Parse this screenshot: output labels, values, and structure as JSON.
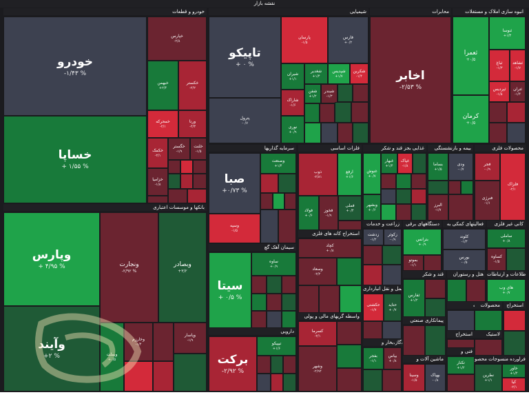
{
  "title": "نقشه بازار",
  "watermark_icon": "site-logo-watermark",
  "colors": {
    "strong_up": "#1fa34a",
    "up": "#187a3a",
    "light_up": "#1f5a36",
    "strong_down": "#d32a3a",
    "down": "#a82535",
    "light_down": "#6b2430",
    "neutral": "#3d4150"
  },
  "sectors": [
    {
      "label": "خودرو و قطعات"
    },
    {
      "label": "شیمیایی"
    },
    {
      "label": "محابرات"
    },
    {
      "label": "انبوه سازی املاک و مستغلات"
    },
    {
      "label": "بانکها و موسسات اعتباری"
    },
    {
      "label": "سرمایه گذاریها"
    },
    {
      "label": "فلزات اساسی"
    },
    {
      "label": "غذایی بجز قند و شکر"
    },
    {
      "label": "بیمه و بازنشستگی"
    },
    {
      "label": "محصولات فلزی"
    },
    {
      "label": "سیمان آهک گچ"
    },
    {
      "label": "استخراج کانه های فلزی"
    },
    {
      "label": "زراعت و خدمات"
    },
    {
      "label": "دستگاههای برقی"
    },
    {
      "label": "فعالیتهای کمکی به"
    },
    {
      "label": "کانی غیر فلزی"
    },
    {
      "label": "قند و شکر"
    },
    {
      "label": "اطلاعات و ارتباطات"
    },
    {
      "label": "حمل و نقل انبارداری"
    },
    {
      "label": "هتل و رستوران"
    },
    {
      "label": "واسطه گریهای مالی و پولی"
    },
    {
      "label": "پیمانکاری صنعتی"
    },
    {
      "label": "رایانه"
    },
    {
      "label": "محصولات"
    },
    {
      "label": "استخراج"
    },
    {
      "label": "دارویی"
    },
    {
      "label": "عرضه برق،گاز،بخار و"
    },
    {
      "label": "لاستیک"
    },
    {
      "label": "استخراج"
    },
    {
      "label": "ماشین آلات و"
    },
    {
      "label": "فنی و"
    },
    {
      "label": "سایر فراورده منسوجات محصو"
    }
  ],
  "tiles": [
    {
      "name": "خودرو",
      "pct": "-۱/۴۳ %"
    },
    {
      "name": "خساپا",
      "pct": "+ ۱/۵۵ %"
    },
    {
      "name": "خپارس",
      "pct": "-۲/۸"
    },
    {
      "name": "خبهمن",
      "pct": "+۲/۴"
    },
    {
      "name": "خکستر",
      "pct": "-۲/۲"
    },
    {
      "name": "خمحرکه",
      "pct": "-۲/۱"
    },
    {
      "name": "ورنا",
      "pct": "-۲/۳"
    },
    {
      "name": "خکمک",
      "pct": "-۲/۱"
    },
    {
      "name": "خگستر",
      "pct": "-۱/۹"
    },
    {
      "name": "خزامیا",
      "pct": "-۱/۸"
    },
    {
      "name": "خلنت",
      "pct": "-۱/۵"
    },
    {
      "name": "تاپیکو",
      "pct": "+ ۰ %"
    },
    {
      "name": "پترول",
      "pct": "-۰/۷"
    },
    {
      "name": "پارسان",
      "pct": "-۱/۵"
    },
    {
      "name": "فارس",
      "pct": "+۰/۲"
    },
    {
      "name": "شپدیس",
      "pct": "+۱/۷"
    },
    {
      "name": "شغدیر",
      "pct": "+۱/۴"
    },
    {
      "name": "شکربن",
      "pct": "-۱/۴"
    },
    {
      "name": "شیران",
      "pct": "+۱/۱"
    },
    {
      "name": "شاراک",
      "pct": "-۱/۶"
    },
    {
      "name": "شفن",
      "pct": "+۱/۲"
    },
    {
      "name": "شبندر",
      "pct": "-۱/۳"
    },
    {
      "name": "نوری",
      "pct": "+۰/۹"
    },
    {
      "name": "اخابر",
      "pct": "-۲/۵۳ %"
    },
    {
      "name": "ثنوسا",
      "pct": "+۱/۳"
    },
    {
      "name": "ثعمرا",
      "pct": "+۰/۵"
    },
    {
      "name": "ثباغ",
      "pct": "-۱/۳"
    },
    {
      "name": "ثشاهد",
      "pct": "-۱/۷"
    },
    {
      "name": "کرمان",
      "pct": "+۰/۵"
    },
    {
      "name": "ثپردیس",
      "pct": "-۱/۵"
    },
    {
      "name": "ثتران",
      "pct": "-۱/۴"
    },
    {
      "name": "وپارس",
      "pct": "+ ۴/۹۵ %"
    },
    {
      "name": "ونجارت",
      "pct": "-۲/۹۲ %"
    },
    {
      "name": "وبصادر",
      "pct": "+۳/۲"
    },
    {
      "name": "وآیند",
      "pct": "+۲ %"
    },
    {
      "name": "وبملت",
      "pct": "+۰/۵"
    },
    {
      "name": "وپاسار",
      "pct": "-۱/۹"
    },
    {
      "name": "وخارزم",
      "pct": "-۱/۴"
    },
    {
      "name": "صبا",
      "pct": "+۰/۷۳ %"
    },
    {
      "name": "وصنعت",
      "pct": "+۱/۴"
    },
    {
      "name": "وسپه",
      "pct": "-۱/۵"
    },
    {
      "name": "ذوب",
      "pct": "-۲/۸۱"
    },
    {
      "name": "ارفع",
      "pct": "+۱/۶"
    },
    {
      "name": "فولاد",
      "pct": "+۰/۶"
    },
    {
      "name": "فخوز",
      "pct": "-۱/۹"
    },
    {
      "name": "فملی",
      "pct": "+۰/۴"
    },
    {
      "name": "غنوش",
      "pct": "+۰/۷"
    },
    {
      "name": "غبهار",
      "pct": "+۱/۴"
    },
    {
      "name": "غپاک",
      "pct": "-۱/۸"
    },
    {
      "name": "وبشهر",
      "pct": "+۰/۶"
    },
    {
      "name": "بساما",
      "pct": "+۱/۵"
    },
    {
      "name": "ودی",
      "pct": "-۰/۷"
    },
    {
      "name": "البرز",
      "pct": "-۱/۷"
    },
    {
      "name": "فجر",
      "pct": "-۰/۹"
    },
    {
      "name": "فنرژی",
      "pct": "-۱/۱"
    },
    {
      "name": "فلزاک",
      "pct": "-۲/۱"
    },
    {
      "name": "سیتا",
      "pct": "+ ۰/۵ %"
    },
    {
      "name": "ساوه",
      "pct": "+۰/۹"
    },
    {
      "name": "کچاد",
      "pct": "+۰/۸"
    },
    {
      "name": "وسعاد",
      "pct": "-۲/۲"
    },
    {
      "name": "زدشت",
      "pct": "-۱/۲"
    },
    {
      "name": "زکوثر",
      "pct": "-۰/۹"
    },
    {
      "name": "بترانس",
      "pct": "+۰/۹"
    },
    {
      "name": "بموتو",
      "pct": "-۱/۱"
    },
    {
      "name": "کلوند",
      "pct": "-۱/۳"
    },
    {
      "name": "بورس",
      "pct": "-۰/۵"
    },
    {
      "name": "ساملی",
      "pct": "+۰/۸"
    },
    {
      "name": "کساوه",
      "pct": "-۱/۵"
    },
    {
      "name": "ثفارس",
      "pct": "+۱/۲"
    },
    {
      "name": "های وب",
      "pct": "+۰/۷"
    },
    {
      "name": "حکشتی",
      "pct": "-۱/۷"
    },
    {
      "name": "حتاید",
      "pct": "+۰/۷"
    },
    {
      "name": "کسرما",
      "pct": "-۲/۱"
    },
    {
      "name": "وشهر",
      "pct": "-۲/۹۴"
    },
    {
      "name": "دارو",
      "pct": "-۱/۶"
    },
    {
      "name": "برکت",
      "pct": "-۲/۹۲ %"
    },
    {
      "name": "بفجر",
      "pct": "-۱/۱"
    },
    {
      "name": "بپاس",
      "pct": "+۰/۸"
    },
    {
      "name": "وملت",
      "pct": "+۰/۶"
    },
    {
      "name": "وبانک",
      "pct": "-۱/۴"
    },
    {
      "name": "تیپیکو",
      "pct": "+۱/۶"
    },
    {
      "name": "وسینا",
      "pct": "-۱/۵"
    },
    {
      "name": "بهپاک",
      "pct": "-۰/۸"
    },
    {
      "name": "تکنار",
      "pct": "+۱/۲"
    },
    {
      "name": "نطرین",
      "pct": "+۱/۱"
    },
    {
      "name": "خاور",
      "pct": "+۱/۴"
    },
    {
      "name": "کیا",
      "pct": "-۲/۱"
    },
    {
      "name": "حخزر",
      "pct": "-۱/۸"
    }
  ]
}
